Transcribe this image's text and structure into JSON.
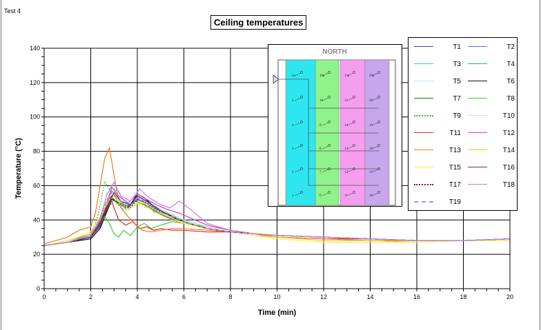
{
  "header": {
    "test_label": "Test 4"
  },
  "chart_data": {
    "type": "line",
    "title": "Ceiling temperatures",
    "xlabel": "Time (min)",
    "ylabel": "Temperature (°C)",
    "xlim": [
      0,
      20
    ],
    "ylim": [
      0,
      140
    ],
    "xticks": [
      0,
      2,
      4,
      6,
      8,
      10,
      12,
      14,
      16,
      18,
      20
    ],
    "yticks": [
      0,
      20,
      40,
      60,
      80,
      100,
      120,
      140
    ],
    "grid": true,
    "legend_position": "top-right",
    "series": [
      {
        "name": "T1",
        "color": "#3b3bd1",
        "dash": "solid",
        "x": [
          0,
          1,
          2,
          2.4,
          2.7,
          2.9,
          3.1,
          3.3,
          3.5,
          3.8,
          4,
          4.3,
          4.7,
          5.2,
          6,
          7,
          8,
          9,
          10,
          12,
          14,
          16,
          18,
          20
        ],
        "y": [
          25,
          27,
          30,
          36,
          46,
          55,
          54,
          49,
          47,
          51,
          52,
          50,
          45,
          42,
          38,
          35,
          33,
          32,
          31,
          30,
          29,
          28,
          28,
          29
        ]
      },
      {
        "name": "T2",
        "color": "#4d6fff",
        "dash": "solid",
        "x": [
          0,
          1,
          2,
          2.4,
          2.7,
          2.9,
          3.1,
          3.4,
          3.7,
          4,
          4.3,
          4.7,
          5.2,
          6,
          7,
          8,
          9,
          10,
          12,
          14,
          16,
          18,
          20
        ],
        "y": [
          25,
          27,
          31,
          38,
          48,
          56,
          53,
          48,
          49,
          52,
          51,
          47,
          44,
          40,
          36,
          34,
          32,
          31,
          30,
          29,
          28,
          28,
          29
        ]
      },
      {
        "name": "T3",
        "color": "#27c6d6",
        "dash": "solid",
        "x": [
          0,
          1,
          2,
          2.4,
          2.7,
          2.9,
          3.2,
          3.5,
          3.8,
          4.1,
          4.5,
          5,
          5.5,
          6,
          7,
          8,
          9,
          10,
          12,
          14,
          16,
          18,
          20
        ],
        "y": [
          25,
          27,
          32,
          40,
          50,
          57,
          52,
          48,
          50,
          53,
          50,
          46,
          43,
          40,
          36,
          34,
          32,
          31,
          30,
          29,
          28,
          28,
          29
        ]
      },
      {
        "name": "T4",
        "color": "#19b0b0",
        "dash": "solid",
        "x": [
          0,
          1,
          2,
          2.4,
          2.7,
          3,
          3.3,
          3.6,
          4,
          4.4,
          4.9,
          5.5,
          6,
          7,
          8,
          9,
          10,
          12,
          14,
          16,
          18,
          20
        ],
        "y": [
          25,
          27,
          31,
          39,
          49,
          55,
          51,
          47,
          52,
          50,
          46,
          42,
          40,
          36,
          34,
          32,
          31,
          30,
          29,
          28,
          28,
          29
        ]
      },
      {
        "name": "T5",
        "color": "#bfe9f2",
        "dash": "solid",
        "x": [
          0,
          1,
          2,
          2.4,
          2.8,
          3.1,
          3.5,
          3.9,
          4.3,
          4.8,
          5.3,
          6,
          7,
          8,
          9,
          10,
          12,
          14,
          16,
          18,
          20
        ],
        "y": [
          25,
          27,
          31,
          40,
          52,
          56,
          49,
          51,
          50,
          46,
          43,
          40,
          36,
          34,
          32,
          31,
          30,
          29,
          28,
          28,
          29
        ]
      },
      {
        "name": "T6",
        "color": "#111111",
        "dash": "solid",
        "x": [
          0,
          1,
          2,
          2.4,
          2.7,
          2.9,
          3.2,
          3.6,
          4,
          4.3,
          4.7,
          5.2,
          6,
          7,
          8,
          9,
          10,
          12,
          14,
          16,
          18,
          20
        ],
        "y": [
          25,
          27,
          29,
          35,
          45,
          52,
          50,
          47,
          55,
          53,
          48,
          44,
          39,
          35,
          33,
          32,
          31,
          30,
          29,
          28,
          28,
          29
        ]
      },
      {
        "name": "T7",
        "color": "#0a7f0a",
        "dash": "solid",
        "x": [
          0,
          1,
          2,
          2.4,
          2.7,
          2.9,
          3.2,
          3.5,
          3.9,
          4.3,
          4.8,
          5.3,
          6,
          7,
          8,
          9,
          10,
          12,
          14,
          16,
          18,
          20
        ],
        "y": [
          25,
          27,
          30,
          37,
          47,
          53,
          49,
          47,
          51,
          49,
          45,
          42,
          39,
          35,
          33,
          32,
          31,
          30,
          29,
          28,
          28,
          29
        ]
      },
      {
        "name": "T8",
        "color": "#3cc93c",
        "dash": "solid",
        "x": [
          0,
          1,
          2,
          2.3,
          2.6,
          2.8,
          3,
          3.2,
          3.4,
          3.7,
          4,
          4.3,
          4.6,
          5,
          5.5,
          6,
          7,
          8,
          9,
          10,
          12,
          14,
          16,
          18,
          20
        ],
        "y": [
          25,
          27,
          30,
          35,
          42,
          38,
          32,
          30,
          34,
          31,
          36,
          38,
          35,
          37,
          39,
          38,
          36,
          34,
          32,
          31,
          30,
          29,
          28,
          28,
          29
        ]
      },
      {
        "name": "T9",
        "color": "#22bb22",
        "dash": "dot",
        "x": [
          0,
          1,
          2,
          2.3,
          2.6,
          2.8,
          3,
          3.3,
          3.6,
          4,
          4.4,
          4.9,
          5.5,
          6,
          7,
          8,
          9,
          10,
          12,
          14,
          16,
          18,
          20
        ],
        "y": [
          25,
          27,
          31,
          42,
          62,
          58,
          52,
          47,
          46,
          50,
          48,
          45,
          42,
          40,
          36,
          34,
          32,
          31,
          30,
          29,
          28,
          28,
          29
        ]
      },
      {
        "name": "T10",
        "color": "#c9ecbe",
        "dash": "solid",
        "x": [
          0,
          1,
          2,
          2.4,
          2.8,
          3.1,
          3.5,
          3.9,
          4.3,
          4.8,
          5.3,
          6,
          7,
          8,
          9,
          10,
          12,
          14,
          16,
          18,
          20
        ],
        "y": [
          25,
          27,
          31,
          41,
          54,
          58,
          50,
          49,
          51,
          47,
          44,
          40,
          36,
          34,
          32,
          31,
          30,
          29,
          28,
          28,
          29
        ]
      },
      {
        "name": "T11",
        "color": "#e02424",
        "dash": "solid",
        "x": [
          0,
          1,
          2,
          2.3,
          2.6,
          2.8,
          3,
          3.2,
          3.5,
          3.8,
          4.1,
          4.4,
          4.7,
          5,
          5.5,
          6,
          7,
          8,
          9,
          10,
          12,
          14,
          16,
          18,
          20
        ],
        "y": [
          25,
          27,
          31,
          36,
          46,
          54,
          47,
          40,
          37,
          39,
          35,
          36,
          34,
          35,
          34,
          34,
          33,
          33,
          32,
          30,
          29,
          29,
          28,
          28,
          29
        ]
      },
      {
        "name": "T12",
        "color": "#e031e0",
        "dash": "solid",
        "x": [
          0,
          1,
          2,
          2.4,
          2.7,
          2.9,
          3.2,
          3.6,
          4,
          4.4,
          4.8,
          5.3,
          5.8,
          6.3,
          7,
          8,
          9,
          10,
          12,
          14,
          16,
          18,
          20
        ],
        "y": [
          25,
          27,
          31,
          40,
          50,
          59,
          54,
          50,
          55,
          52,
          49,
          46,
          44,
          41,
          37,
          34,
          32,
          31,
          30,
          29,
          28,
          28,
          29
        ]
      },
      {
        "name": "T13",
        "color": "#f07a1e",
        "dash": "solid",
        "x": [
          0,
          1,
          1.5,
          2,
          2.2,
          2.4,
          2.6,
          2.8,
          2.9,
          3.1,
          3.3,
          3.6,
          3.9,
          4.2,
          4.6,
          5,
          5.5,
          6,
          7,
          8,
          9,
          10,
          12,
          14,
          16,
          18,
          20
        ],
        "y": [
          26,
          30,
          34,
          36,
          44,
          60,
          76,
          82,
          74,
          58,
          47,
          42,
          38,
          34,
          33,
          34,
          35,
          35,
          34,
          33,
          32,
          30,
          29,
          28,
          28,
          28,
          29
        ]
      },
      {
        "name": "T14",
        "color": "#f2c51a",
        "dash": "solid",
        "x": [
          0,
          1,
          2,
          2.4,
          2.7,
          3,
          3.3,
          3.7,
          4.1,
          4.5,
          5,
          5.5,
          6,
          7,
          8,
          9,
          10,
          12,
          14,
          16,
          18,
          20
        ],
        "y": [
          25,
          28,
          32,
          40,
          50,
          54,
          48,
          47,
          50,
          47,
          43,
          40,
          38,
          35,
          33,
          31,
          30,
          28,
          28,
          27,
          28,
          28
        ]
      },
      {
        "name": "T15",
        "color": "#f7f23a",
        "dash": "solid",
        "x": [
          0,
          1,
          2,
          2.4,
          2.7,
          3,
          3.3,
          3.7,
          4.1,
          4.5,
          5,
          5.5,
          6,
          7,
          8,
          9,
          10,
          12,
          14,
          16,
          18,
          20
        ],
        "y": [
          25,
          28,
          33,
          42,
          52,
          56,
          49,
          47,
          51,
          48,
          44,
          41,
          38,
          35,
          33,
          31,
          29,
          27,
          27,
          27,
          28,
          28
        ]
      },
      {
        "name": "T16",
        "color": "#6e1d82",
        "dash": "solid",
        "x": [
          0,
          1,
          2,
          2.4,
          2.7,
          3,
          3.3,
          3.7,
          4,
          4.4,
          4.8,
          5.3,
          6,
          7,
          8,
          9,
          10,
          12,
          14,
          16,
          18,
          20
        ],
        "y": [
          25,
          27,
          30,
          38,
          48,
          56,
          51,
          49,
          54,
          51,
          47,
          43,
          39,
          35,
          33,
          32,
          31,
          30,
          29,
          28,
          28,
          29
        ]
      },
      {
        "name": "T17",
        "color": "#7a1030",
        "dash": "dot",
        "x": [
          0,
          1,
          2,
          2.4,
          2.7,
          3,
          3.3,
          3.7,
          4,
          4.4,
          4.8,
          5.3,
          6,
          7,
          8,
          9,
          10,
          12,
          14,
          16,
          18,
          20
        ],
        "y": [
          25,
          27,
          30,
          37,
          46,
          52,
          49,
          47,
          52,
          50,
          46,
          43,
          39,
          35,
          33,
          32,
          31,
          30,
          29,
          28,
          28,
          29
        ]
      },
      {
        "name": "T18",
        "color": "#c07fe6",
        "dash": "solid",
        "x": [
          0,
          1,
          2,
          2.4,
          2.7,
          3,
          3.3,
          3.7,
          4.1,
          4.5,
          5,
          5.4,
          5.8,
          6.3,
          7,
          8,
          9,
          10,
          12,
          14,
          16,
          18,
          20
        ],
        "y": [
          25,
          27,
          31,
          41,
          55,
          62,
          54,
          51,
          58,
          53,
          49,
          47,
          51,
          46,
          38,
          34,
          32,
          31,
          30,
          29,
          28,
          28,
          29
        ]
      },
      {
        "name": "T19",
        "color": "#b18ce6",
        "dash": "dash",
        "x": [
          0,
          1,
          2,
          2.4,
          2.7,
          3,
          3.3,
          3.7,
          4,
          4.4,
          4.9,
          5.5,
          6,
          7,
          8,
          9,
          10,
          12,
          14,
          16,
          18,
          20
        ],
        "y": [
          25,
          27,
          31,
          40,
          52,
          58,
          51,
          48,
          53,
          49,
          45,
          42,
          39,
          35,
          33,
          32,
          31,
          30,
          29,
          28,
          28,
          29
        ]
      }
    ]
  },
  "floorplan": {
    "title": "NORTH",
    "zone_colors": [
      "#2ee6f0",
      "#8ff28a",
      "#f59ef0",
      "#c8a6ee"
    ],
    "labels": [
      "5a",
      "10a",
      "15a",
      "20a",
      "5",
      "10",
      "15",
      "20",
      "4",
      "9",
      "14",
      "19",
      "3",
      "8",
      "13",
      "18",
      "2",
      "7",
      "12",
      "17",
      "1",
      "6",
      "11",
      "16"
    ]
  }
}
